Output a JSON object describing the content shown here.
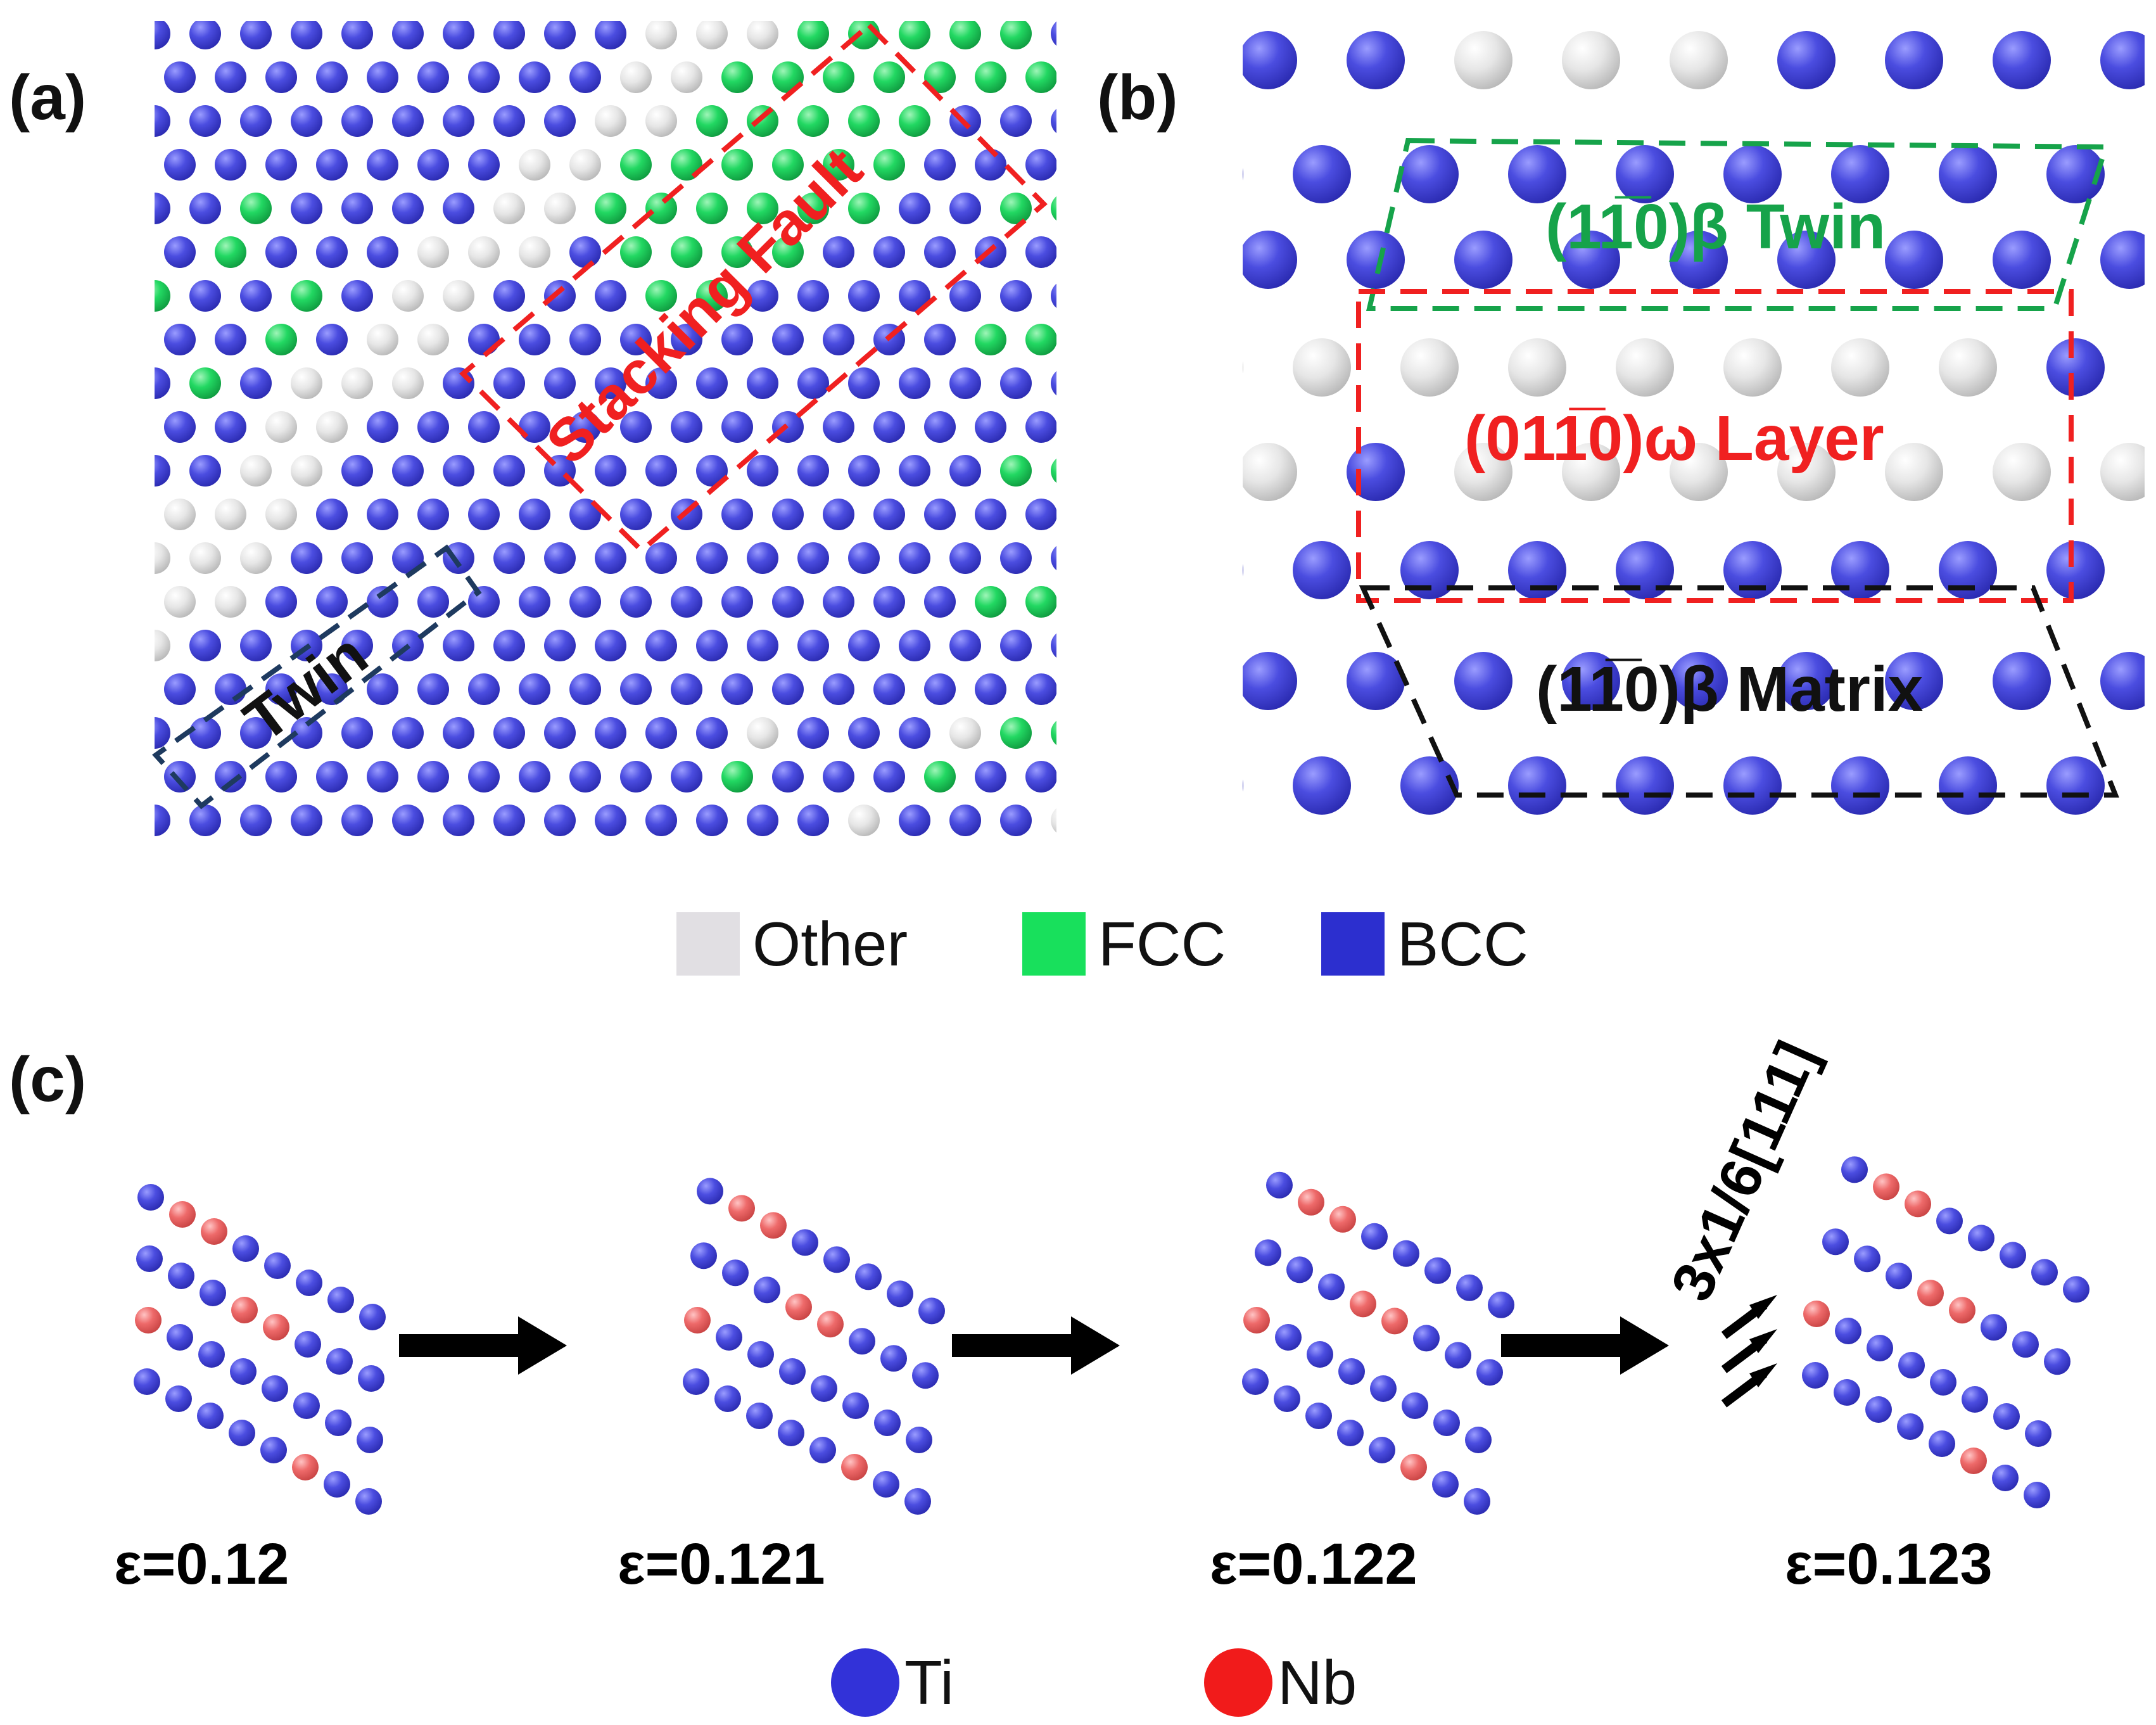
{
  "panels": {
    "a": {
      "label": "(a)",
      "annotations": {
        "stacking_fault": "Stacking Fault",
        "twin": "Twin"
      }
    },
    "b": {
      "label": "(b)",
      "annotations": {
        "twin": "(11̅0)β Twin",
        "omega_layer": "(011̅0)ω Layer",
        "matrix": "(11̅0)β Matrix"
      }
    },
    "c": {
      "label": "(c)",
      "shear_label": "3x1/6[111]",
      "strains": [
        "ε=0.12",
        "ε=0.121",
        "ε=0.122",
        "ε=0.123"
      ]
    }
  },
  "structure_legend": [
    {
      "label": "Other",
      "color": "#e1dfe3"
    },
    {
      "label": "FCC",
      "color": "#18e05c"
    },
    {
      "label": "BCC",
      "color": "#2c2fcf"
    }
  ],
  "element_legend": [
    {
      "label": "Ti",
      "color": "#3232d8"
    },
    {
      "label": "Nb",
      "color": "#f11b1b"
    }
  ],
  "colors": {
    "bcc": "#4a48e0",
    "fcc": "#1ed45a",
    "other": "#e4e4e4",
    "ti": "#4a48e0",
    "nb": "#f07070",
    "red_box": "#f02020",
    "green_box": "#16a34a",
    "dark_box": "#1e3a5f",
    "black": "#111111"
  }
}
